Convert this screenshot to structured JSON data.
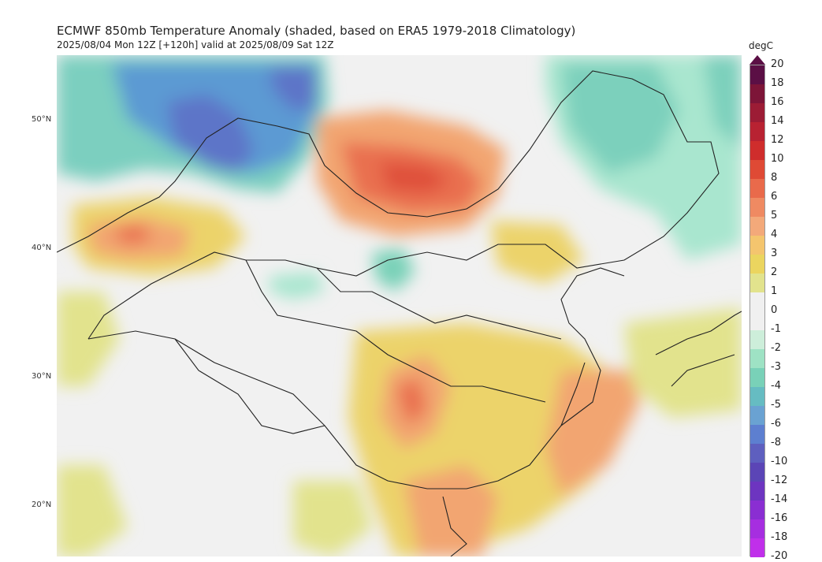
{
  "title": "ECMWF 850mb Temperature Anomaly (shaded, based on ERA5 1979-2018 Climatology)",
  "subtitle": "2025/08/04 Mon 12Z [+120h] valid at 2025/08/09 Sat 12Z",
  "latitude_labels": [
    "50°N",
    "40°N",
    "30°N",
    "20°N"
  ],
  "colorbar": {
    "unit": "degC",
    "ticks": [
      "20",
      "18",
      "16",
      "14",
      "12",
      "10",
      "8",
      "6",
      "5",
      "4",
      "3",
      "2",
      "1",
      "0",
      "-1",
      "-2",
      "-3",
      "-4",
      "-5",
      "-6",
      "-8",
      "-10",
      "-12",
      "-14",
      "-16",
      "-18",
      "-20"
    ],
    "colors": [
      "#5b0f45",
      "#7d1538",
      "#9c1c35",
      "#b82232",
      "#cf2d2c",
      "#df4a35",
      "#e96a4b",
      "#ef8a62",
      "#f3a97a",
      "#f4c56e",
      "#ebd55f",
      "#e2e38d",
      "#f0f0f0",
      "#f0f0f0",
      "#cdeeda",
      "#9ee2c4",
      "#79d1b8",
      "#66bcc2",
      "#6aa2d2",
      "#5d7fd0",
      "#5e5fbf",
      "#5b45b6",
      "#6d35c0",
      "#8a2ed2",
      "#a62ee0",
      "#c02fea"
    ]
  },
  "map_icon": "temperature-anomaly-shaded-map"
}
